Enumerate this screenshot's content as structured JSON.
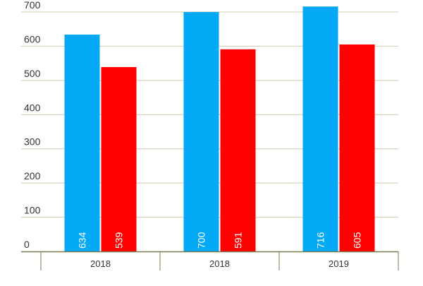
{
  "chart_data": {
    "type": "bar",
    "categories": [
      "2018",
      "2018",
      "2019"
    ],
    "series": [
      {
        "values": [
          634,
          700,
          716
        ],
        "color": "#03a9f4"
      },
      {
        "values": [
          539,
          591,
          605
        ],
        "color": "#ff0000"
      }
    ],
    "title": "",
    "xlabel": "",
    "ylabel": "",
    "ylim": [
      0,
      700
    ],
    "yticks": [
      0,
      100,
      200,
      300,
      400,
      500,
      600,
      700
    ],
    "grid": true,
    "legend": "none",
    "data_labels": "inside-bottom-rotated",
    "colors": {
      "gridline": "#cfc9b0",
      "axis": "#7a7a52",
      "tick_text": "#333333",
      "label_text": "#ffffff"
    }
  }
}
